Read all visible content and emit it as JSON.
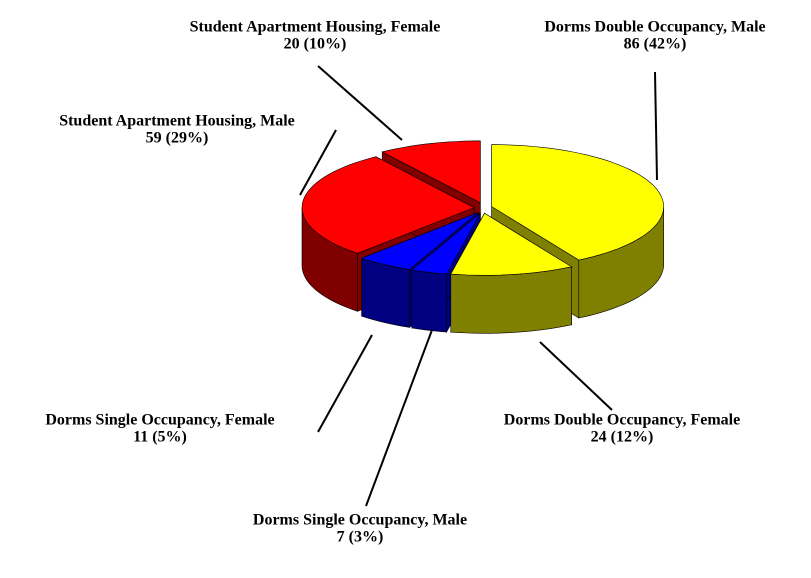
{
  "chart_data": {
    "type": "pie3d",
    "categories": [
      "Dorms Double Occupancy, Male",
      "Dorms Double Occupancy, Female",
      "Dorms Single Occupancy, Male",
      "Dorms Single Occupancy, Female",
      "Student Apartment Housing, Male",
      "Student Apartment Housing, Female"
    ],
    "values": [
      86,
      24,
      7,
      11,
      59,
      20
    ],
    "value_labels": [
      "86 (42%)",
      "24 (12%)",
      "7 (3%)",
      "11 (5%)",
      "59 (29%)",
      "20 (10%)"
    ],
    "colors": [
      "#ffff00",
      "#ffff00",
      "#0000ff",
      "#0000ff",
      "#ff0000",
      "#ff0000"
    ],
    "side_colors": [
      "#808000",
      "#808000",
      "#000080",
      "#000080",
      "#800000",
      "#800000"
    ]
  }
}
